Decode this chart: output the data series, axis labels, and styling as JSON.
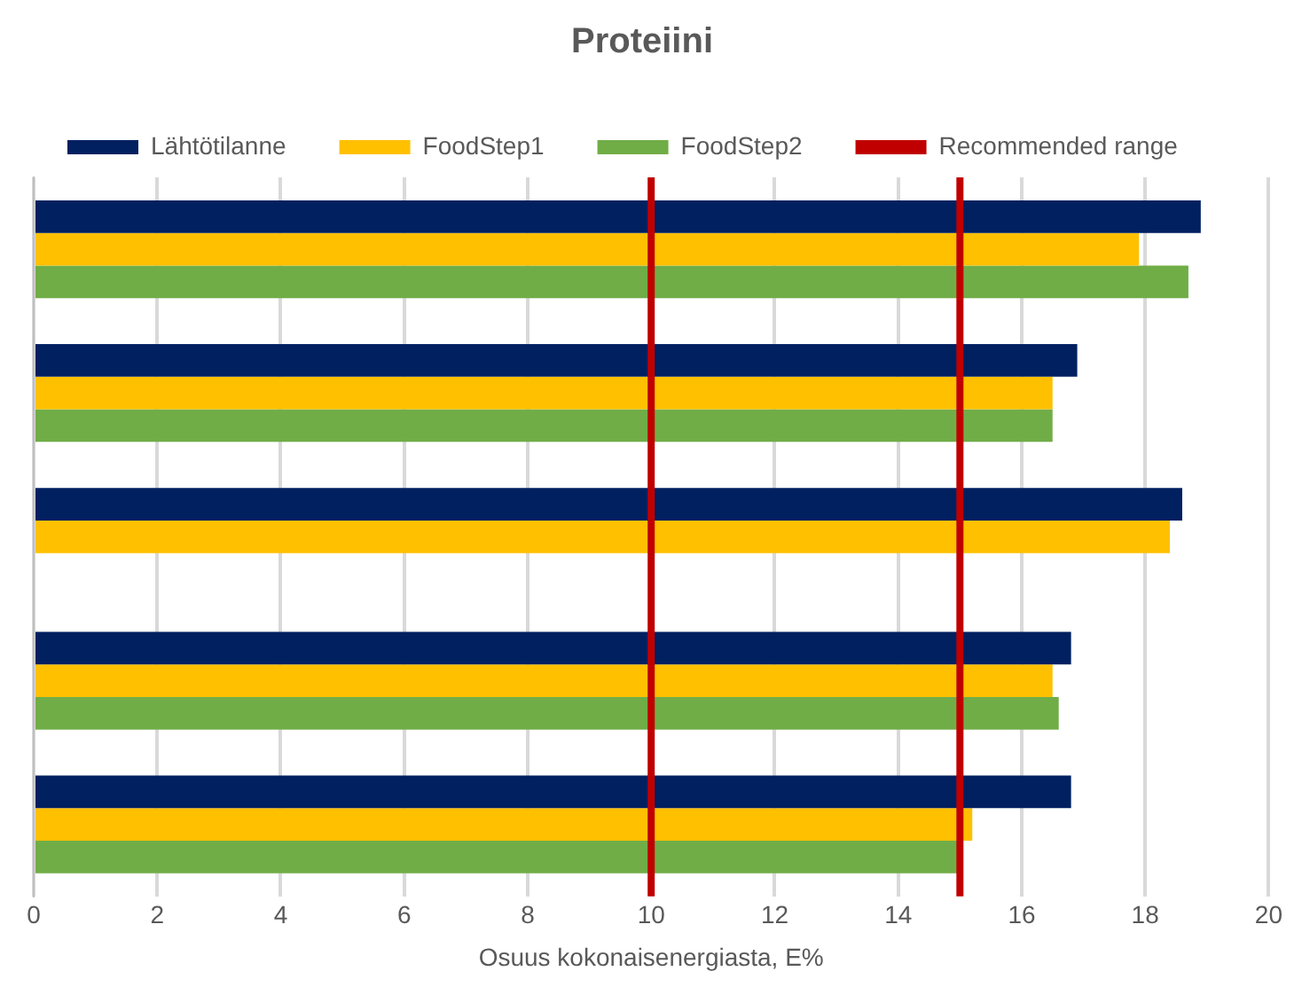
{
  "chart_data": {
    "type": "bar",
    "orientation": "horizontal",
    "title": "Proteiini",
    "xlabel": "Osuus kokonaisenergiasta, E%",
    "categories": [
      null,
      null,
      null,
      null,
      null
    ],
    "series": [
      {
        "name": "Lähtötilanne",
        "color": "#002060",
        "values": [
          18.9,
          16.9,
          18.6,
          16.8,
          16.8
        ]
      },
      {
        "name": "FoodStep1",
        "color": "#ffc000",
        "values": [
          17.9,
          16.5,
          18.4,
          16.5,
          15.2
        ]
      },
      {
        "name": "FoodStep2",
        "color": "#70ad47",
        "values": [
          18.7,
          16.5,
          null,
          16.6,
          15.0
        ]
      }
    ],
    "xlim": [
      0,
      20
    ],
    "xticks": [
      0,
      2,
      4,
      6,
      8,
      10,
      12,
      14,
      16,
      18,
      20
    ],
    "ref_lines": [
      {
        "axis": "x",
        "value": 10,
        "label": "Recommended range",
        "color": "#c00000"
      },
      {
        "axis": "x",
        "value": 15,
        "color": "#c00000"
      }
    ],
    "grid": "x",
    "legend": "top"
  }
}
